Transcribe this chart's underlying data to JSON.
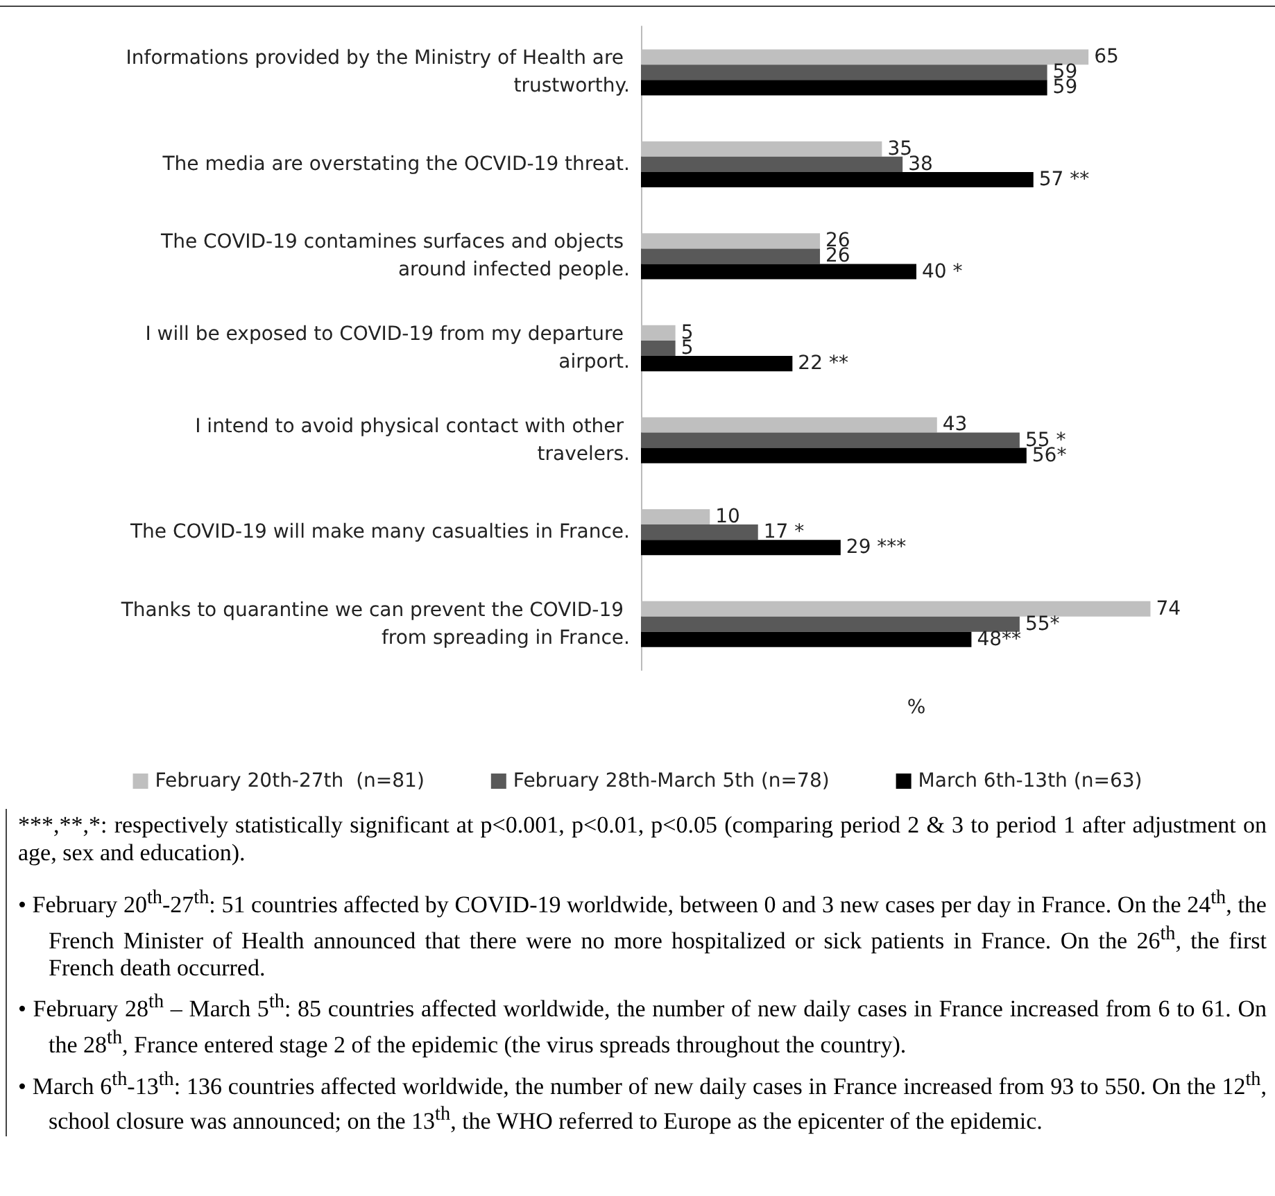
{
  "chart_data": {
    "type": "bar",
    "orientation": "horizontal",
    "xlabel": "%",
    "legend": "bottom",
    "categories": [
      "Informations provided by the Ministry of Health are trustworthy.",
      "The media are overstating the OCVID-19 threat.",
      "The COVID-19 contamines surfaces and objects around infected people.",
      "I will be exposed to COVID-19 from my departure airport.",
      "I intend to avoid physical contact with other travelers.",
      "The COVID-19 will make many casualties in France.",
      "Thanks to quarantine we can prevent the COVID-19 from spreading in France."
    ],
    "series": [
      {
        "name": "February 20th-27th  (n=81)",
        "color": "#bfbfbf",
        "values": [
          65,
          35,
          26,
          5,
          43,
          10,
          74
        ],
        "value_labels": [
          "65",
          "35",
          "26",
          "5",
          "43",
          "10",
          "74"
        ]
      },
      {
        "name": "February 28th-March 5th (n=78)",
        "color": "#595959",
        "values": [
          59,
          38,
          26,
          5,
          55,
          17,
          55
        ],
        "value_labels": [
          "59",
          "38",
          "26",
          "5",
          "55 *",
          "17 *",
          "55*"
        ]
      },
      {
        "name": "March 6th-13th (n=63)",
        "color": "#000000",
        "values": [
          59,
          57,
          40,
          22,
          56,
          29,
          48
        ],
        "value_labels": [
          "59",
          "57 **",
          "40 *",
          "22 **",
          "56*",
          "29 ***",
          "48**"
        ]
      }
    ],
    "annotations": [
      "***,**,*: respectively statistically significant at p<0.001, p<0.01, p<0.05 (comparing period 2 & 3 to period 1 after adjustment on age, sex and education).",
      "• February 20$^{th}$-27$^{th}$: 51 countries affected by COVID-19 worldwide, between 0 and 3 new cases per day in France. On the 24$^{th}$, the French Minister of Health announced that there were no more hospitalized or sick patients in France. On the 26$^{th}$, the first French death occurred.",
      "• February 28$^{th}$ – March 5$^{th}$: 85 countries affected worldwide, the number of new daily cases in France increased from 6 to 61. On the 28$^{th}$, France entered stage 2 of the epidemic (the virus spreads throughout the country).",
      "• March 6$^{th}$-13$^{th}$: 136 countries affected worldwide, the number of new daily cases in France increased from 93 to 550. On the 12$^{th}$, school closure was announced; on the 13$^{th}$, the WHO referred to Europe as the epicenter of the epidemic."
    ]
  }
}
